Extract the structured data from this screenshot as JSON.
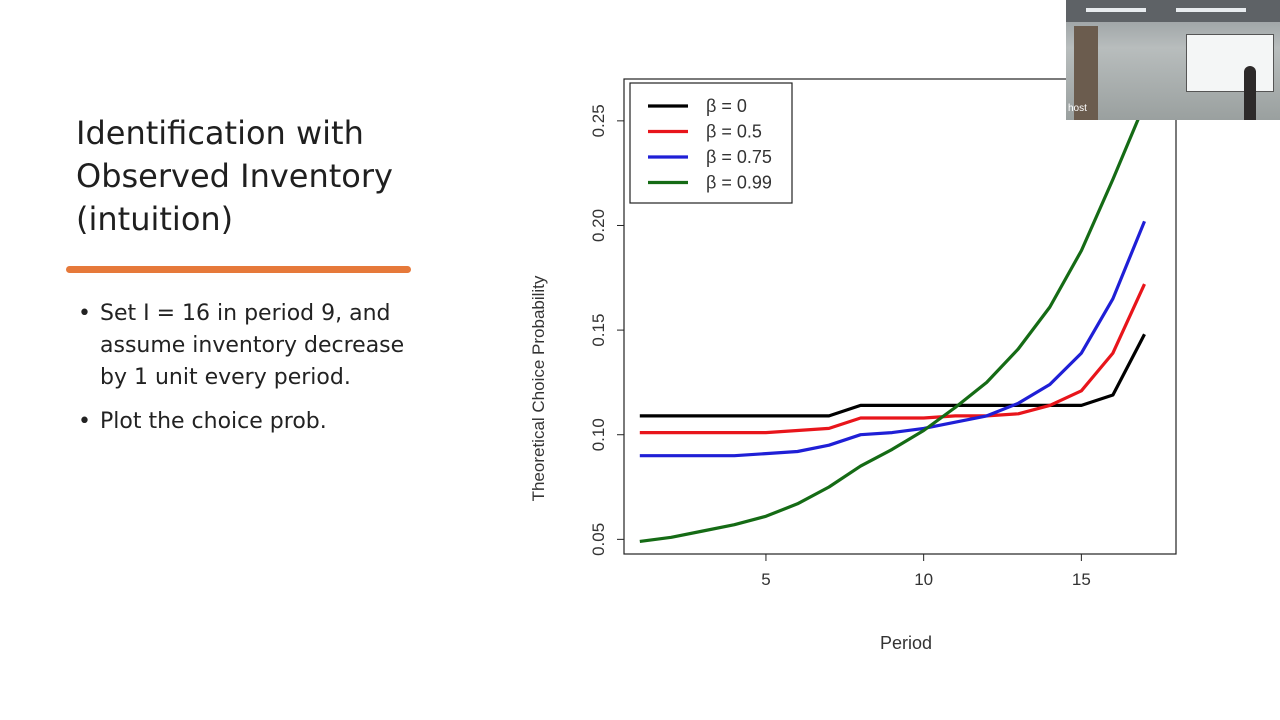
{
  "slide": {
    "title": "Identification with Observed Inventory (intuition)",
    "bullets": [
      "Set I = 16 in period 9, and assume inventory decrease by 1 unit every period.",
      "Plot the choice prob."
    ]
  },
  "webcam": {
    "label": "host"
  },
  "colors": {
    "accent_underline": "#e6793a"
  },
  "chart_data": {
    "type": "line",
    "xlabel": "Period",
    "ylabel": "Theoretical Choice Probability",
    "xlim": [
      0.5,
      18
    ],
    "ylim": [
      0.043,
      0.27
    ],
    "x_ticks": [
      5,
      10,
      15
    ],
    "y_ticks": [
      0.05,
      0.1,
      0.15,
      0.2,
      0.25
    ],
    "y_tick_labels": [
      "0.05",
      "0.10",
      "0.15",
      "0.20",
      "0.25"
    ],
    "legend_position": "top-left",
    "x": [
      1,
      2,
      3,
      4,
      5,
      6,
      7,
      8,
      9,
      10,
      11,
      12,
      13,
      14,
      15,
      16,
      17
    ],
    "series": [
      {
        "name": "β = 0",
        "color": "#000000",
        "values": [
          0.109,
          0.109,
          0.109,
          0.109,
          0.109,
          0.109,
          0.109,
          0.114,
          0.114,
          0.114,
          0.114,
          0.114,
          0.114,
          0.114,
          0.114,
          0.119,
          0.148
        ]
      },
      {
        "name": "β = 0.5",
        "color": "#e8151b",
        "values": [
          0.101,
          0.101,
          0.101,
          0.101,
          0.101,
          0.102,
          0.103,
          0.108,
          0.108,
          0.108,
          0.109,
          0.109,
          0.11,
          0.114,
          0.121,
          0.139,
          0.172
        ]
      },
      {
        "name": "β = 0.75",
        "color": "#1f1fd6",
        "values": [
          0.09,
          0.09,
          0.09,
          0.09,
          0.091,
          0.092,
          0.095,
          0.1,
          0.101,
          0.103,
          0.106,
          0.109,
          0.115,
          0.124,
          0.139,
          0.165,
          0.202
        ]
      },
      {
        "name": "β = 0.99",
        "color": "#156b15",
        "values": [
          0.049,
          0.051,
          0.054,
          0.057,
          0.061,
          0.067,
          0.075,
          0.085,
          0.093,
          0.102,
          0.113,
          0.125,
          0.141,
          0.161,
          0.188,
          0.222,
          0.258
        ]
      }
    ]
  }
}
